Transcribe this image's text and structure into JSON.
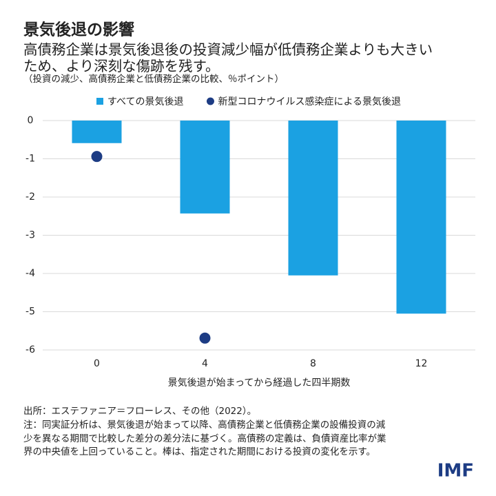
{
  "chart_data": {
    "type": "bar",
    "title": "景気後退の影響",
    "subtitle": [
      "高債務企業は景気後退後の投資減少幅が低債務企業よりも大きい",
      "ため、より深刻な傷跡を残す。"
    ],
    "note": "（投資の減少、高債務企業と低債務企業の比較、％ポイント）",
    "x": [
      0,
      4,
      8,
      12
    ],
    "xlim": [
      -2,
      14
    ],
    "xticks": [
      0,
      4,
      8,
      12
    ],
    "xlabel": "景気後退が始まってから経過した四半期数",
    "ylim": [
      -6,
      0
    ],
    "yticks": [
      0,
      -1,
      -2,
      -3,
      -4,
      -5,
      -6
    ],
    "grid": true,
    "series": [
      {
        "name": "すべての景気後退",
        "mark": "bar",
        "color": "#1ba1e2",
        "values": [
          -0.59,
          -2.43,
          -4.05,
          -5.05
        ]
      },
      {
        "name": "新型コロナウイルス感染症による景気後退",
        "mark": "dot",
        "color": "#1d3c84",
        "values": [
          -0.94,
          -5.69,
          null,
          null
        ]
      }
    ],
    "footer": [
      "出所：エステファニア＝フローレス、その他（2022）。",
      "注：同実証分析は、景気後退が始まって以降、高債務企業と低債務企業の設備投資の減",
      "少を異なる期間で比較した差分の差分法に基づく。高債務の定義は、負債資産比率が業",
      "界の中央値を上回っていること。棒は、指定された期間における投資の変化を示す。"
    ],
    "logo": "IMF"
  }
}
